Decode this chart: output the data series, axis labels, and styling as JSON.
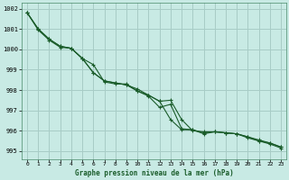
{
  "title": "Graphe pression niveau de la mer (hPa)",
  "background_color": "#c8eae4",
  "grid_color": "#a8ccc6",
  "line_color": "#1a5c2a",
  "xlim": [
    -0.5,
    23.5
  ],
  "ylim": [
    994.6,
    1002.3
  ],
  "yticks": [
    995,
    996,
    997,
    998,
    999,
    1000,
    1001,
    1002
  ],
  "xticks": [
    0,
    1,
    2,
    3,
    4,
    5,
    6,
    7,
    8,
    9,
    10,
    11,
    12,
    13,
    14,
    15,
    16,
    17,
    18,
    19,
    20,
    21,
    22,
    23
  ],
  "series1_x": [
    0,
    1,
    2,
    3,
    4,
    5,
    6,
    7,
    8,
    9,
    10,
    11,
    12,
    13,
    14,
    15,
    16,
    17,
    18,
    19,
    20,
    21,
    22,
    23
  ],
  "series1_y": [
    1001.8,
    1001.0,
    1000.5,
    1000.15,
    1000.05,
    999.55,
    998.85,
    998.45,
    998.35,
    998.25,
    997.95,
    997.75,
    997.45,
    996.55,
    996.05,
    996.05,
    995.9,
    995.95,
    995.9,
    995.85,
    995.7,
    995.55,
    995.4,
    995.2
  ],
  "series2_x": [
    0,
    1,
    2,
    3,
    4,
    5,
    6,
    7,
    8,
    9,
    10,
    11,
    12,
    13,
    14,
    15,
    16,
    17,
    18,
    19,
    20,
    21,
    22,
    23
  ],
  "series2_y": [
    1001.8,
    1000.95,
    1000.45,
    1000.1,
    1000.05,
    999.55,
    999.25,
    998.4,
    998.3,
    998.3,
    997.95,
    997.7,
    997.15,
    997.3,
    996.1,
    996.05,
    995.85,
    995.95,
    995.9,
    995.85,
    995.7,
    995.5,
    995.4,
    995.2
  ],
  "series3_x": [
    0,
    1,
    2,
    3,
    4,
    5,
    6,
    7,
    8,
    9,
    10,
    11,
    12,
    13,
    14,
    15,
    16,
    17,
    18,
    19,
    20,
    21,
    22,
    23
  ],
  "series3_y": [
    1001.8,
    1001.0,
    1000.5,
    1000.15,
    1000.05,
    999.55,
    998.85,
    998.45,
    998.35,
    998.25,
    998.05,
    997.75,
    997.45,
    997.5,
    996.55,
    996.0,
    995.95,
    995.95,
    995.9,
    995.85,
    995.65,
    995.5,
    995.35,
    995.15
  ]
}
